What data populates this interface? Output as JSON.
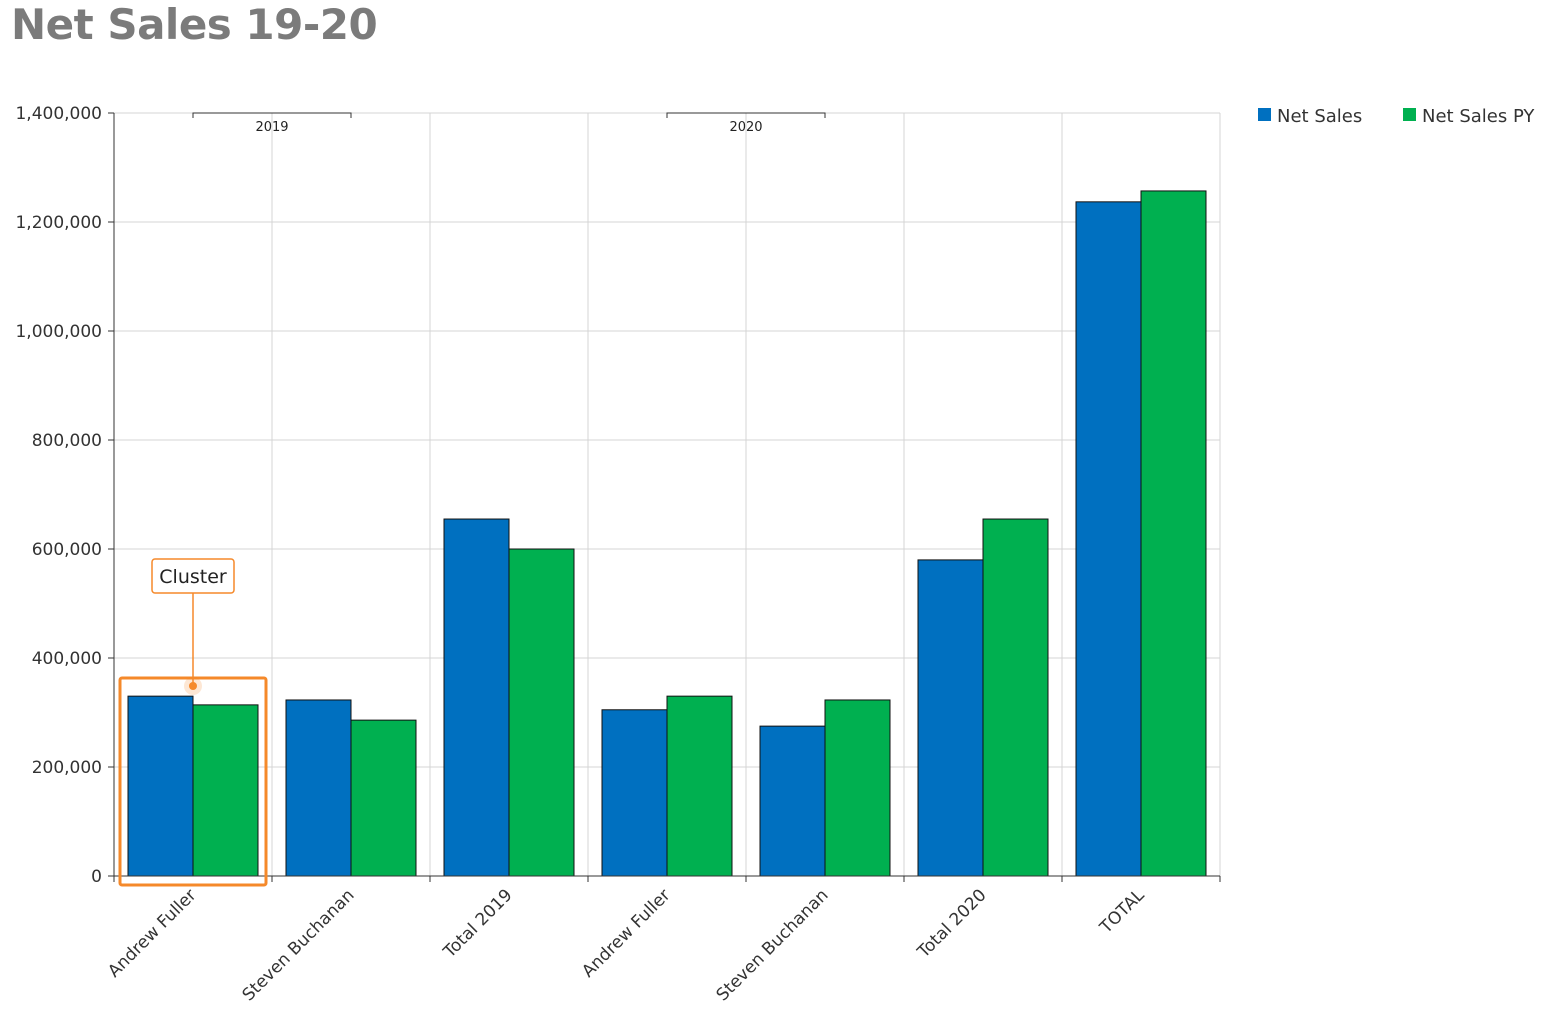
{
  "title": "Net Sales 19-20",
  "colors": {
    "net_sales": "#0070c0",
    "net_sales_py": "#00b050",
    "annotation": "#f5892a"
  },
  "annotation": {
    "label": "Cluster",
    "category_index": 0
  },
  "chart_data": {
    "type": "bar",
    "title": "Net Sales 19-20",
    "xlabel": "",
    "ylabel": "",
    "ylim": [
      0,
      1400000
    ],
    "yticks": [
      0,
      200000,
      400000,
      600000,
      800000,
      1000000,
      1200000,
      1400000
    ],
    "ytick_labels": [
      "0",
      "200,000",
      "400,000",
      "600,000",
      "800,000",
      "1,000,000",
      "1,200,000",
      "1,400,000"
    ],
    "grid": true,
    "legend_position": "top-right",
    "groups": [
      {
        "label": "2019",
        "categories": [
          0,
          1
        ]
      },
      {
        "label": "2020",
        "categories": [
          3,
          4
        ]
      }
    ],
    "categories": [
      "Andrew Fuller",
      "Steven Buchanan",
      "Total 2019",
      "Andrew Fuller",
      "Steven Buchanan",
      "Total 2020",
      "TOTAL"
    ],
    "series": [
      {
        "name": "Net Sales",
        "values": [
          330000,
          323000,
          655000,
          305000,
          275000,
          580000,
          1237000
        ]
      },
      {
        "name": "Net Sales PY",
        "values": [
          314000,
          286000,
          600000,
          330000,
          323000,
          655000,
          1257000
        ]
      }
    ]
  }
}
